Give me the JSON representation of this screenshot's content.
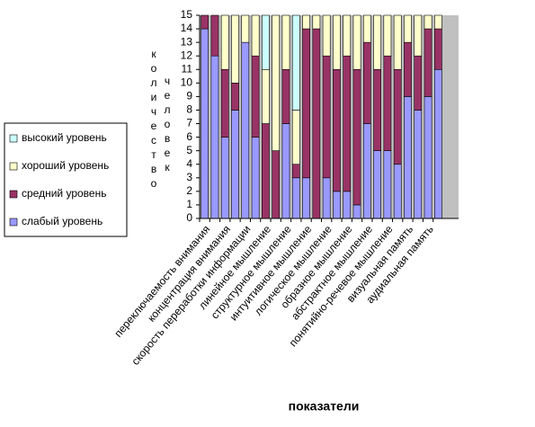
{
  "chart_data": {
    "type": "stacked_bar",
    "y_label_words": [
      "количество",
      "человек"
    ],
    "x_label": "показатели",
    "categories": [
      "переключаемость внимания",
      null,
      "концентрация внимания",
      null,
      "скорость переработки информации",
      null,
      "линейное мышление",
      null,
      "структурное мышление",
      null,
      "интуитивное мышление",
      null,
      "логическое мышление",
      null,
      "образное мышление",
      null,
      "абстрактное мышление",
      null,
      "понятийно-речевое мышление",
      null,
      "визуальная память",
      null,
      "аудиальная память",
      null
    ],
    "series": [
      {
        "name": "слабый уровень",
        "color": "#9999ff",
        "values": [
          14,
          12,
          6,
          8,
          13,
          6,
          0,
          0,
          7,
          3,
          3,
          0,
          3,
          2,
          2,
          1,
          7,
          5,
          5,
          4,
          9,
          8,
          9,
          11
        ]
      },
      {
        "name": "средний уровень",
        "color": "#993366",
        "values": [
          1,
          3,
          5,
          2,
          0,
          6,
          7,
          5,
          4,
          1,
          11,
          14,
          9,
          9,
          10,
          10,
          6,
          6,
          7,
          7,
          4,
          4,
          5,
          3
        ]
      },
      {
        "name": "хороший уровень",
        "color": "#ffffcc",
        "values": [
          0,
          0,
          4,
          5,
          2,
          3,
          4,
          10,
          4,
          4,
          1,
          1,
          3,
          4,
          3,
          4,
          2,
          4,
          3,
          4,
          2,
          3,
          1,
          1
        ]
      },
      {
        "name": "высокий уровень",
        "color": "#ccffff",
        "values": [
          0,
          0,
          0,
          0,
          0,
          0,
          4,
          0,
          0,
          7,
          0,
          0,
          0,
          0,
          0,
          0,
          0,
          0,
          0,
          0,
          0,
          0,
          0,
          0
        ]
      }
    ],
    "ylim": [
      0,
      15
    ],
    "yticks": [
      0,
      1,
      2,
      3,
      4,
      5,
      6,
      7,
      8,
      9,
      10,
      11,
      12,
      13,
      14,
      15
    ],
    "legend": "left"
  }
}
